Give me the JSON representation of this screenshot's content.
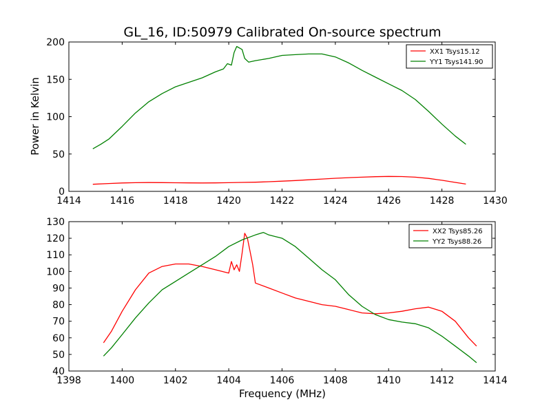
{
  "chart_data": [
    {
      "type": "line",
      "title": "GL_16, ID:50979 Calibrated On-source spectrum",
      "xlabel": "",
      "ylabel": "Power in Kelvin",
      "xlim": [
        1414,
        1430
      ],
      "ylim": [
        0,
        200
      ],
      "xticks": [
        1414,
        1416,
        1418,
        1420,
        1422,
        1424,
        1426,
        1428,
        1430
      ],
      "yticks": [
        0,
        50,
        100,
        150,
        200
      ],
      "grid": false,
      "legend": "top-right",
      "series": [
        {
          "name": "XX1 Tsys15.12",
          "color": "#ff0000",
          "x": [
            1414.9,
            1415.5,
            1416.0,
            1416.5,
            1417.0,
            1417.5,
            1418.0,
            1418.5,
            1419.0,
            1419.5,
            1420.0,
            1420.5,
            1421.0,
            1421.5,
            1422.0,
            1422.5,
            1423.0,
            1423.5,
            1424.0,
            1424.5,
            1425.0,
            1425.5,
            1426.0,
            1426.5,
            1427.0,
            1427.5,
            1428.0,
            1428.5,
            1428.9
          ],
          "y": [
            9.5,
            10.5,
            11.2,
            11.6,
            11.8,
            11.7,
            11.5,
            11.3,
            11.2,
            11.3,
            11.6,
            12.0,
            12.3,
            12.9,
            13.6,
            14.5,
            15.5,
            16.5,
            17.5,
            18.3,
            19.0,
            19.6,
            20.0,
            19.8,
            19.0,
            17.3,
            14.8,
            12.0,
            9.8
          ]
        },
        {
          "name": "YY1 Tsys141.90",
          "color": "#008000",
          "x": [
            1414.9,
            1415.2,
            1415.5,
            1416.0,
            1416.5,
            1417.0,
            1417.5,
            1418.0,
            1418.5,
            1419.0,
            1419.5,
            1419.8,
            1419.95,
            1420.1,
            1420.2,
            1420.3,
            1420.4,
            1420.5,
            1420.6,
            1420.75,
            1421.0,
            1421.5,
            1422.0,
            1422.5,
            1423.0,
            1423.5,
            1424.0,
            1424.5,
            1425.0,
            1425.5,
            1426.0,
            1426.5,
            1427.0,
            1427.5,
            1428.0,
            1428.5,
            1428.9
          ],
          "y": [
            57,
            63,
            70,
            87,
            105,
            120,
            131,
            140,
            146,
            152,
            160,
            164,
            171,
            169,
            186,
            194,
            192,
            190,
            178,
            173,
            175,
            178,
            182,
            183,
            184,
            184,
            180,
            172,
            162,
            153,
            144,
            135,
            123,
            107,
            90,
            74,
            63
          ]
        }
      ]
    },
    {
      "type": "line",
      "title": "",
      "xlabel": "Frequency (MHz)",
      "ylabel": "",
      "xlim": [
        1398,
        1414
      ],
      "ylim": [
        40,
        130
      ],
      "xticks": [
        1398,
        1400,
        1402,
        1404,
        1406,
        1408,
        1410,
        1412,
        1414
      ],
      "yticks": [
        40,
        50,
        60,
        70,
        80,
        90,
        100,
        110,
        120,
        130
      ],
      "grid": false,
      "legend": "top-right",
      "series": [
        {
          "name": "XX2 Tsys85.26",
          "color": "#ff0000",
          "x": [
            1399.3,
            1399.6,
            1400.0,
            1400.5,
            1401.0,
            1401.5,
            1402.0,
            1402.5,
            1403.0,
            1403.5,
            1404.0,
            1404.1,
            1404.2,
            1404.3,
            1404.4,
            1404.5,
            1404.6,
            1404.7,
            1404.8,
            1404.9,
            1405.0,
            1405.5,
            1406.0,
            1406.5,
            1407.0,
            1407.5,
            1408.0,
            1408.5,
            1409.0,
            1409.5,
            1410.0,
            1410.5,
            1411.0,
            1411.5,
            1412.0,
            1412.5,
            1413.0,
            1413.3
          ],
          "y": [
            57,
            64,
            76,
            89,
            99,
            103,
            104.5,
            104.5,
            103,
            101,
            99,
            106,
            101,
            104,
            100,
            111,
            123,
            120,
            112,
            104,
            93,
            90,
            87,
            84,
            82,
            80,
            79,
            77,
            75,
            74.5,
            75,
            76,
            77.5,
            78.5,
            76,
            70,
            60,
            55
          ]
        },
        {
          "name": "YY2 Tsys88.26",
          "color": "#008000",
          "x": [
            1399.3,
            1399.6,
            1400.0,
            1400.5,
            1401.0,
            1401.5,
            1402.0,
            1402.5,
            1403.0,
            1403.5,
            1404.0,
            1404.5,
            1405.0,
            1405.3,
            1405.5,
            1406.0,
            1406.5,
            1407.0,
            1407.5,
            1408.0,
            1408.5,
            1409.0,
            1409.5,
            1410.0,
            1410.5,
            1411.0,
            1411.5,
            1412.0,
            1412.5,
            1413.0,
            1413.3
          ],
          "y": [
            49,
            54,
            62,
            72,
            81,
            89,
            94,
            99,
            104,
            109,
            115,
            119,
            122,
            123.5,
            122,
            120,
            115,
            108,
            101,
            95,
            86,
            79,
            74,
            71,
            69.5,
            68.5,
            66,
            61,
            55,
            49,
            45
          ]
        }
      ]
    }
  ]
}
